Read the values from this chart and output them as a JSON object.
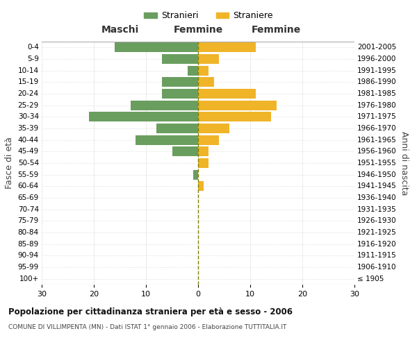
{
  "age_groups": [
    "100+",
    "95-99",
    "90-94",
    "85-89",
    "80-84",
    "75-79",
    "70-74",
    "65-69",
    "60-64",
    "55-59",
    "50-54",
    "45-49",
    "40-44",
    "35-39",
    "30-34",
    "25-29",
    "20-24",
    "15-19",
    "10-14",
    "5-9",
    "0-4"
  ],
  "birth_years": [
    "≤ 1905",
    "1906-1910",
    "1911-1915",
    "1916-1920",
    "1921-1925",
    "1926-1930",
    "1931-1935",
    "1936-1940",
    "1941-1945",
    "1946-1950",
    "1951-1955",
    "1956-1960",
    "1961-1965",
    "1966-1970",
    "1971-1975",
    "1976-1980",
    "1981-1985",
    "1986-1990",
    "1991-1995",
    "1996-2000",
    "2001-2005"
  ],
  "males": [
    0,
    0,
    0,
    0,
    0,
    0,
    0,
    0,
    0,
    1,
    0,
    5,
    12,
    8,
    21,
    13,
    7,
    7,
    2,
    7,
    16
  ],
  "females": [
    0,
    0,
    0,
    0,
    0,
    0,
    0,
    0,
    1,
    0,
    2,
    2,
    4,
    6,
    14,
    15,
    11,
    3,
    2,
    4,
    11
  ],
  "male_color": "#6a9e5f",
  "female_color": "#f0b429",
  "male_label": "Stranieri",
  "female_label": "Straniere",
  "left_header": "Maschi",
  "right_header": "Femmine",
  "left_ylabel": "Fasce di età",
  "right_ylabel": "Anni di nascita",
  "title": "Popolazione per cittadinanza straniera per età e sesso - 2006",
  "subtitle": "COMUNE DI VILLIMPENTA (MN) - Dati ISTAT 1° gennaio 2006 - Elaborazione TUTTITALIA.IT",
  "xlim": 30,
  "xticks": [
    -30,
    -20,
    -10,
    0,
    10,
    20,
    30
  ],
  "background_color": "#ffffff",
  "grid_color": "#cccccc",
  "dashed_line_color": "#808000"
}
